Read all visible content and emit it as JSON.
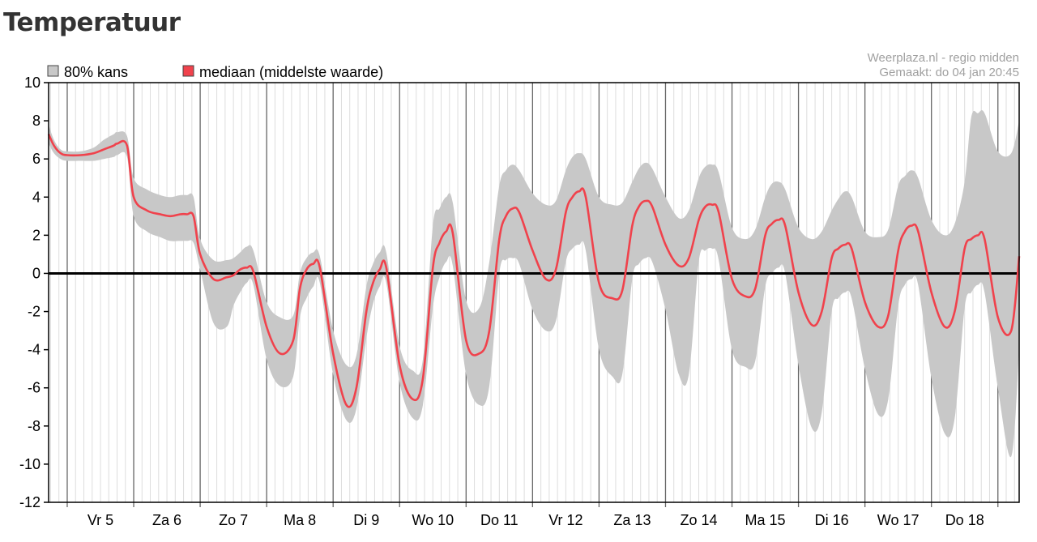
{
  "page": {
    "title": "Temperatuur"
  },
  "chart_data": {
    "type": "area",
    "source_line": "Weerplaza.nl - regio midden",
    "made_line": "Gemaakt: do 04 jan 20:45",
    "legend": {
      "band_label": "80% kans",
      "median_label": "mediaan (middelste waarde)",
      "placement": "top-left"
    },
    "colors": {
      "band": "#c8c8c8",
      "median": "#f0424c",
      "axis": "#000000",
      "day_grid": "#666666",
      "hour_grid": "#dddddd"
    },
    "ylim": [
      -12,
      10
    ],
    "yticks": [
      10,
      8,
      6,
      4,
      2,
      0,
      -2,
      -4,
      -6,
      -8,
      -10,
      -12
    ],
    "ytick_labels": [
      "10",
      "8",
      "6",
      "4",
      "2",
      "0",
      "-2",
      "-4",
      "-6",
      "-8",
      "-10",
      "-12"
    ],
    "x_unit": "day index from start of 5 jan",
    "xlim": [
      -0.28,
      14.32
    ],
    "day_labels": [
      "Vr 5",
      "Za 6",
      "Zo 7",
      "Ma 8",
      "Di 9",
      "Wo 10",
      "Do 11",
      "Vr 12",
      "Za 13",
      "Zo 14",
      "Ma 15",
      "Di 16",
      "Wo 17",
      "Do 18"
    ],
    "day_label_positions": [
      0.5,
      1.5,
      2.5,
      3.5,
      4.5,
      5.5,
      6.5,
      7.5,
      8.5,
      9.5,
      10.5,
      11.5,
      12.5,
      13.5
    ],
    "median": {
      "x": [
        -0.28,
        -0.2,
        -0.1,
        0.0,
        0.2,
        0.4,
        0.55,
        0.7,
        0.75,
        0.9,
        1.0,
        1.2,
        1.4,
        1.55,
        1.7,
        1.8,
        1.9,
        2.0,
        2.2,
        2.4,
        2.5,
        2.6,
        2.7,
        2.8,
        3.0,
        3.2,
        3.4,
        3.5,
        3.6,
        3.7,
        3.8,
        4.0,
        4.2,
        4.35,
        4.5,
        4.6,
        4.7,
        4.8,
        5.0,
        5.2,
        5.35,
        5.5,
        5.6,
        5.7,
        5.8,
        6.0,
        6.2,
        6.35,
        6.5,
        6.6,
        6.7,
        6.8,
        7.0,
        7.2,
        7.35,
        7.5,
        7.6,
        7.7,
        7.8,
        8.0,
        8.2,
        8.35,
        8.5,
        8.6,
        8.7,
        8.8,
        9.0,
        9.2,
        9.35,
        9.5,
        9.6,
        9.7,
        9.8,
        10.0,
        10.2,
        10.35,
        10.5,
        10.6,
        10.7,
        10.8,
        11.0,
        11.2,
        11.35,
        11.5,
        11.6,
        11.7,
        11.8,
        12.0,
        12.2,
        12.35,
        12.5,
        12.6,
        12.7,
        12.8,
        13.0,
        13.2,
        13.35,
        13.5,
        13.6,
        13.7,
        13.8,
        14.0,
        14.2,
        14.32
      ],
      "y": [
        7.3,
        6.7,
        6.3,
        6.2,
        6.2,
        6.3,
        6.5,
        6.7,
        6.8,
        6.7,
        4.0,
        3.3,
        3.1,
        3.0,
        3.1,
        3.1,
        3.0,
        1.0,
        -0.3,
        -0.2,
        -0.1,
        0.2,
        0.3,
        0.1,
        -2.8,
        -4.2,
        -3.5,
        -0.8,
        0.2,
        0.5,
        0.3,
        -4.2,
        -6.9,
        -6.0,
        -2.0,
        -0.5,
        0.2,
        0.3,
        -4.8,
        -6.6,
        -5.5,
        0.3,
        1.6,
        2.2,
        2.1,
        -3.5,
        -4.2,
        -3.0,
        1.8,
        3.0,
        3.4,
        3.2,
        1.2,
        -0.3,
        0.2,
        3.2,
        4.0,
        4.3,
        4.0,
        -0.5,
        -1.3,
        -0.9,
        2.5,
        3.5,
        3.8,
        3.5,
        1.5,
        0.4,
        0.8,
        2.8,
        3.5,
        3.6,
        3.2,
        -0.3,
        -1.2,
        -0.8,
        2.0,
        2.6,
        2.8,
        2.5,
        -1.0,
        -2.7,
        -2.0,
        0.8,
        1.3,
        1.5,
        1.3,
        -1.5,
        -2.8,
        -2.2,
        1.2,
        2.2,
        2.5,
        2.2,
        -1.0,
        -2.8,
        -2.0,
        1.3,
        1.8,
        2.0,
        1.8,
        -2.3,
        -3.0,
        0.9
      ]
    },
    "band": {
      "x": [
        -0.28,
        -0.2,
        -0.1,
        0.0,
        0.2,
        0.4,
        0.55,
        0.7,
        0.75,
        0.9,
        1.0,
        1.2,
        1.4,
        1.55,
        1.7,
        1.8,
        1.9,
        2.0,
        2.2,
        2.4,
        2.5,
        2.6,
        2.7,
        2.8,
        3.0,
        3.2,
        3.4,
        3.5,
        3.6,
        3.7,
        3.8,
        4.0,
        4.2,
        4.35,
        4.5,
        4.6,
        4.7,
        4.8,
        5.0,
        5.2,
        5.35,
        5.5,
        5.6,
        5.7,
        5.8,
        6.0,
        6.2,
        6.35,
        6.5,
        6.6,
        6.7,
        6.8,
        7.0,
        7.2,
        7.35,
        7.5,
        7.6,
        7.7,
        7.8,
        8.0,
        8.2,
        8.35,
        8.5,
        8.6,
        8.7,
        8.8,
        9.0,
        9.2,
        9.35,
        9.5,
        9.6,
        9.7,
        9.8,
        10.0,
        10.2,
        10.35,
        10.5,
        10.6,
        10.7,
        10.8,
        11.0,
        11.2,
        11.35,
        11.5,
        11.6,
        11.7,
        11.8,
        12.0,
        12.2,
        12.35,
        12.5,
        12.6,
        12.7,
        12.8,
        13.0,
        13.2,
        13.35,
        13.5,
        13.6,
        13.7,
        13.8,
        14.0,
        14.2,
        14.32
      ],
      "upper": [
        7.8,
        7.0,
        6.5,
        6.4,
        6.4,
        6.6,
        7.0,
        7.3,
        7.4,
        7.2,
        5.0,
        4.4,
        4.1,
        4.0,
        4.1,
        4.1,
        4.0,
        1.8,
        0.7,
        0.7,
        0.8,
        1.1,
        1.4,
        1.2,
        -1.5,
        -2.3,
        -2.2,
        0.0,
        0.8,
        1.1,
        0.9,
        -3.0,
        -4.8,
        -4.3,
        -0.7,
        0.5,
        1.1,
        1.1,
        -3.8,
        -5.1,
        -4.5,
        2.5,
        3.4,
        4.0,
        3.7,
        -1.4,
        -1.8,
        0.6,
        4.6,
        5.4,
        5.7,
        5.4,
        4.2,
        3.6,
        3.8,
        5.4,
        6.1,
        6.3,
        6.0,
        4.0,
        3.6,
        3.7,
        4.8,
        5.5,
        5.8,
        5.5,
        4.0,
        2.9,
        3.3,
        5.0,
        5.6,
        5.7,
        5.3,
        2.4,
        1.8,
        2.3,
        4.0,
        4.7,
        4.8,
        4.4,
        2.4,
        1.8,
        2.2,
        3.3,
        3.9,
        4.3,
        4.0,
        2.2,
        1.9,
        2.3,
        4.6,
        5.1,
        5.4,
        5.0,
        2.8,
        2.0,
        2.6,
        4.8,
        8.2,
        8.4,
        8.4,
        6.4,
        6.3,
        8.0
      ],
      "lower": [
        6.8,
        6.3,
        6.0,
        5.9,
        5.9,
        5.9,
        6.0,
        6.1,
        6.2,
        6.1,
        3.0,
        2.2,
        1.9,
        1.7,
        1.7,
        1.7,
        1.6,
        0.2,
        -2.6,
        -2.8,
        -1.7,
        -1.0,
        -0.5,
        -0.6,
        -4.5,
        -5.9,
        -5.4,
        -2.3,
        -1.3,
        -0.7,
        -0.5,
        -5.3,
        -7.7,
        -7.1,
        -3.4,
        -1.6,
        -0.7,
        -0.5,
        -5.7,
        -7.6,
        -6.9,
        -1.8,
        -0.2,
        0.6,
        0.4,
        -5.3,
        -6.9,
        -5.9,
        0.0,
        0.7,
        0.8,
        0.5,
        -1.9,
        -3.0,
        -2.5,
        0.6,
        1.3,
        1.5,
        1.2,
        -4.0,
        -5.4,
        -5.3,
        -0.3,
        0.5,
        0.8,
        0.6,
        -1.9,
        -5.3,
        -5.3,
        0.6,
        1.2,
        1.3,
        0.7,
        -4.0,
        -4.9,
        -4.6,
        -0.7,
        0.0,
        0.3,
        0.0,
        -4.8,
        -8.1,
        -7.3,
        -2.0,
        -1.3,
        -1.0,
        -1.3,
        -5.0,
        -7.4,
        -6.6,
        -1.7,
        -0.6,
        -0.3,
        -0.6,
        -5.5,
        -8.4,
        -7.6,
        -1.8,
        -1.0,
        -0.6,
        -1.0,
        -6.0,
        -9.6,
        -4.0
      ]
    }
  }
}
